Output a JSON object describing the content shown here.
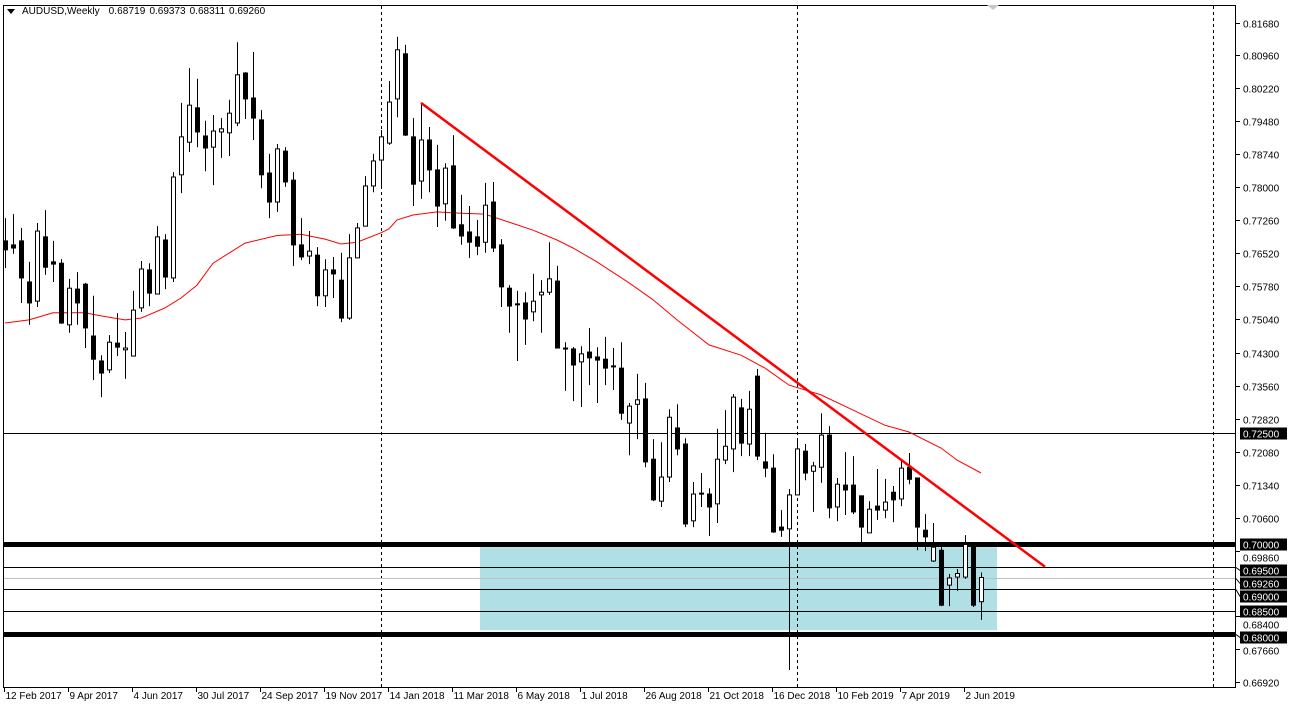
{
  "header": {
    "symbol_timeframe": "AUDUSD,Weekly",
    "ohlc": [
      "0.68719",
      "0.69373",
      "0.68311",
      "0.69260"
    ]
  },
  "colors": {
    "bull_body": "#ffffff",
    "bear_body": "#000000",
    "candle_outline": "#000000",
    "ma_line": "#ff0000",
    "trendline": "#ff0000",
    "zone_fill": "#b0dfe5",
    "price_box_bg": "#000000",
    "price_box_text": "#ffffff",
    "current_price_line": "#c0c0c0"
  },
  "chart_data": {
    "type": "candlestick",
    "symbol": "AUDUSD",
    "timeframe": "Weekly",
    "first_candle_week": "2017-02-12",
    "ylim": [
      0.6692,
      0.8168
    ],
    "grid": false,
    "y_tick_labels": [
      "0.81680",
      "0.80960",
      "0.80220",
      "0.79480",
      "0.78740",
      "0.78000",
      "0.77260",
      "0.76520",
      "0.75780",
      "0.75040",
      "0.74300",
      "0.73560",
      "0.72820",
      "0.72080",
      "0.71340",
      "0.70600",
      "0.69860",
      "0.68400",
      "0.67660",
      "0.66920"
    ],
    "x_tick_labels": [
      "12 Feb 2017",
      "9 Apr 2017",
      "4 Jun 2017",
      "30 Jul 2017",
      "24 Sep 2017",
      "19 Nov 2017",
      "14 Jan 2018",
      "11 Mar 2018",
      "6 May 2018",
      "1 Jul 2018",
      "26 Aug 2018",
      "21 Oct 2018",
      "16 Dec 2018",
      "10 Feb 2019",
      "7 Apr 2019",
      "2 Jun 2019"
    ],
    "ohlc_fields": [
      "open",
      "high",
      "low",
      "close"
    ],
    "candles": [
      [
        0.768,
        0.7731,
        0.7619,
        0.766
      ],
      [
        0.7671,
        0.774,
        0.7651,
        0.7664
      ],
      [
        0.768,
        0.7709,
        0.7541,
        0.7597
      ],
      [
        0.7588,
        0.7633,
        0.7492,
        0.7541
      ],
      [
        0.7545,
        0.772,
        0.7532,
        0.7702
      ],
      [
        0.7689,
        0.7749,
        0.7604,
        0.7621
      ],
      [
        0.7633,
        0.768,
        0.7588,
        0.7628
      ],
      [
        0.763,
        0.7639,
        0.7494,
        0.7496
      ],
      [
        0.7492,
        0.7595,
        0.7474,
        0.7574
      ],
      [
        0.7572,
        0.761,
        0.7492,
        0.7541
      ],
      [
        0.7583,
        0.7586,
        0.744,
        0.7485
      ],
      [
        0.7467,
        0.7557,
        0.7368,
        0.7415
      ],
      [
        0.7411,
        0.7424,
        0.733,
        0.7384
      ],
      [
        0.7391,
        0.7469,
        0.7384,
        0.7453
      ],
      [
        0.7451,
        0.7518,
        0.7422,
        0.7442
      ],
      [
        0.7436,
        0.7476,
        0.7371,
        0.744
      ],
      [
        0.7422,
        0.7568,
        0.7422,
        0.7525
      ],
      [
        0.753,
        0.7635,
        0.7521,
        0.7617
      ],
      [
        0.7615,
        0.763,
        0.7534,
        0.7563
      ],
      [
        0.7561,
        0.7713,
        0.7561,
        0.7689
      ],
      [
        0.7682,
        0.7695,
        0.7572,
        0.7599
      ],
      [
        0.7597,
        0.7834,
        0.7588,
        0.7823
      ],
      [
        0.7828,
        0.7989,
        0.7787,
        0.7913
      ],
      [
        0.7901,
        0.8067,
        0.7879,
        0.7984
      ],
      [
        0.7978,
        0.8043,
        0.789,
        0.7924
      ],
      [
        0.7915,
        0.7949,
        0.7836,
        0.7888
      ],
      [
        0.789,
        0.7962,
        0.7805,
        0.7926
      ],
      [
        0.7924,
        0.7955,
        0.7866,
        0.7931
      ],
      [
        0.7922,
        0.7996,
        0.787,
        0.7966
      ],
      [
        0.7944,
        0.8125,
        0.7937,
        0.8052
      ],
      [
        0.8056,
        0.8058,
        0.7953,
        0.7998
      ],
      [
        0.8,
        0.8103,
        0.7906,
        0.7955
      ],
      [
        0.7951,
        0.7973,
        0.7798,
        0.7828
      ],
      [
        0.7832,
        0.7875,
        0.7731,
        0.7767
      ],
      [
        0.7767,
        0.7897,
        0.7745,
        0.7886
      ],
      [
        0.7881,
        0.789,
        0.7801,
        0.7812
      ],
      [
        0.7816,
        0.7834,
        0.7624,
        0.7671
      ],
      [
        0.7671,
        0.7731,
        0.7637,
        0.7644
      ],
      [
        0.7646,
        0.7702,
        0.7628,
        0.7657
      ],
      [
        0.7648,
        0.7666,
        0.7534,
        0.7557
      ],
      [
        0.7557,
        0.7639,
        0.7532,
        0.7615
      ],
      [
        0.7615,
        0.7644,
        0.7552,
        0.7606
      ],
      [
        0.7592,
        0.7653,
        0.7498,
        0.7507
      ],
      [
        0.7507,
        0.7695,
        0.7503,
        0.7642
      ],
      [
        0.7642,
        0.772,
        0.7642,
        0.7709
      ],
      [
        0.7713,
        0.7825,
        0.7713,
        0.7803
      ],
      [
        0.7803,
        0.7875,
        0.7789,
        0.7859
      ],
      [
        0.7861,
        0.7928,
        0.7801,
        0.7913
      ],
      [
        0.7899,
        0.8038,
        0.7895,
        0.7991
      ],
      [
        0.7998,
        0.8137,
        0.7957,
        0.8108
      ],
      [
        0.8099,
        0.8119,
        0.7915,
        0.7917
      ],
      [
        0.7913,
        0.7955,
        0.7758,
        0.7807
      ],
      [
        0.7814,
        0.7989,
        0.7774,
        0.7906
      ],
      [
        0.7906,
        0.7935,
        0.7789,
        0.7839
      ],
      [
        0.7839,
        0.7895,
        0.7711,
        0.7758
      ],
      [
        0.7763,
        0.7854,
        0.7725,
        0.7843
      ],
      [
        0.7848,
        0.7917,
        0.7707,
        0.7709
      ],
      [
        0.7716,
        0.7783,
        0.7671,
        0.7691
      ],
      [
        0.77,
        0.7758,
        0.7642,
        0.7677
      ],
      [
        0.7689,
        0.7727,
        0.7648,
        0.7668
      ],
      [
        0.7677,
        0.781,
        0.7653,
        0.776
      ],
      [
        0.7767,
        0.7812,
        0.7655,
        0.7664
      ],
      [
        0.7671,
        0.7684,
        0.7532,
        0.7577
      ],
      [
        0.7574,
        0.7581,
        0.7474,
        0.7534
      ],
      [
        0.7539,
        0.7568,
        0.7411,
        0.7538
      ],
      [
        0.7541,
        0.7565,
        0.7447,
        0.7505
      ],
      [
        0.7521,
        0.7606,
        0.75,
        0.7545
      ],
      [
        0.7559,
        0.7592,
        0.7474,
        0.7565
      ],
      [
        0.7565,
        0.7677,
        0.7559,
        0.7595
      ],
      [
        0.759,
        0.7624,
        0.744,
        0.744
      ],
      [
        0.744,
        0.7453,
        0.7344,
        0.7438
      ],
      [
        0.7438,
        0.7442,
        0.7321,
        0.7402
      ],
      [
        0.7409,
        0.7444,
        0.7308,
        0.7427
      ],
      [
        0.7431,
        0.7485,
        0.7357,
        0.7418
      ],
      [
        0.742,
        0.7442,
        0.7317,
        0.7413
      ],
      [
        0.7415,
        0.7465,
        0.7357,
        0.7395
      ],
      [
        0.74,
        0.744,
        0.7346,
        0.7398
      ],
      [
        0.7395,
        0.7453,
        0.7279,
        0.7294
      ],
      [
        0.7272,
        0.7317,
        0.72,
        0.731
      ],
      [
        0.7314,
        0.7382,
        0.7236,
        0.7324
      ],
      [
        0.7326,
        0.7362,
        0.7173,
        0.7185
      ],
      [
        0.7191,
        0.7236,
        0.7097,
        0.71
      ],
      [
        0.7097,
        0.7229,
        0.7084,
        0.7151
      ],
      [
        0.7151,
        0.7303,
        0.714,
        0.7285
      ],
      [
        0.7261,
        0.7314,
        0.72,
        0.7214
      ],
      [
        0.7225,
        0.7238,
        0.7039,
        0.7046
      ],
      [
        0.7053,
        0.714,
        0.7039,
        0.7113
      ],
      [
        0.7113,
        0.716,
        0.7084,
        0.7115
      ],
      [
        0.7113,
        0.7126,
        0.7019,
        0.7084
      ],
      [
        0.7091,
        0.7259,
        0.7048,
        0.7191
      ],
      [
        0.7189,
        0.7301,
        0.718,
        0.722
      ],
      [
        0.7214,
        0.7337,
        0.7162,
        0.733
      ],
      [
        0.7306,
        0.7326,
        0.7198,
        0.7227
      ],
      [
        0.7225,
        0.7344,
        0.7198,
        0.7303
      ],
      [
        0.7377,
        0.7393,
        0.7189,
        0.7198
      ],
      [
        0.7185,
        0.725,
        0.7151,
        0.7171
      ],
      [
        0.7171,
        0.7202,
        0.7026,
        0.7028
      ],
      [
        0.7039,
        0.7077,
        0.7017,
        0.7032
      ],
      [
        0.7035,
        0.7124,
        0.6719,
        0.7111
      ],
      [
        0.7111,
        0.7234,
        0.7111,
        0.7214
      ],
      [
        0.7209,
        0.7225,
        0.7144,
        0.716
      ],
      [
        0.7164,
        0.7185,
        0.7073,
        0.7176
      ],
      [
        0.7173,
        0.7294,
        0.7138,
        0.7245
      ],
      [
        0.7245,
        0.7265,
        0.7059,
        0.7082
      ],
      [
        0.7084,
        0.7149,
        0.7052,
        0.7135
      ],
      [
        0.7133,
        0.7207,
        0.7066,
        0.7122
      ],
      [
        0.7133,
        0.7198,
        0.7068,
        0.7073
      ],
      [
        0.7109,
        0.7109,
        0.7003,
        0.7039
      ],
      [
        0.7026,
        0.7097,
        0.7026,
        0.7079
      ],
      [
        0.7086,
        0.7169,
        0.7055,
        0.7077
      ],
      [
        0.7077,
        0.7147,
        0.7059,
        0.7095
      ],
      [
        0.7117,
        0.7131,
        0.705,
        0.71
      ],
      [
        0.7102,
        0.7191,
        0.7086,
        0.7171
      ],
      [
        0.7173,
        0.7205,
        0.7135,
        0.7146
      ],
      [
        0.7149,
        0.7149,
        0.6987,
        0.7039
      ],
      [
        0.7032,
        0.7068,
        0.6985,
        0.7017
      ],
      [
        0.6963,
        0.7048,
        0.6961,
        0.6994
      ],
      [
        0.6987,
        0.6994,
        0.6862,
        0.6864
      ],
      [
        0.6909,
        0.6934,
        0.6862,
        0.6925
      ],
      [
        0.6927,
        0.6945,
        0.6896,
        0.6935
      ],
      [
        0.6927,
        0.7021,
        0.6923,
        0.7
      ],
      [
        0.7,
        0.7,
        0.686,
        0.6864
      ],
      [
        0.68719,
        0.69373,
        0.68311,
        0.6926
      ]
    ],
    "moving_average": {
      "point_fields": [
        "candle_index",
        "price"
      ],
      "points": [
        [
          0,
          0.7496
        ],
        [
          3,
          0.7503
        ],
        [
          6,
          0.7519
        ],
        [
          10,
          0.7519
        ],
        [
          12,
          0.7512
        ],
        [
          15,
          0.7503
        ],
        [
          17,
          0.7507
        ],
        [
          20,
          0.753
        ],
        [
          22,
          0.7552
        ],
        [
          24,
          0.7581
        ],
        [
          26,
          0.763
        ],
        [
          30,
          0.7675
        ],
        [
          34,
          0.7692
        ],
        [
          37,
          0.7695
        ],
        [
          40,
          0.7684
        ],
        [
          42,
          0.7673
        ],
        [
          44,
          0.7677
        ],
        [
          47,
          0.7698
        ],
        [
          48,
          0.7707
        ],
        [
          49,
          0.7727
        ],
        [
          51,
          0.7738
        ],
        [
          54,
          0.7745
        ],
        [
          57,
          0.7742
        ],
        [
          60,
          0.774
        ],
        [
          63,
          0.7722
        ],
        [
          66,
          0.7704
        ],
        [
          69,
          0.7682
        ],
        [
          71,
          0.7664
        ],
        [
          74,
          0.7633
        ],
        [
          78,
          0.7586
        ],
        [
          81,
          0.7548
        ],
        [
          84,
          0.7503
        ],
        [
          88,
          0.7447
        ],
        [
          92,
          0.7424
        ],
        [
          95,
          0.7395
        ],
        [
          98,
          0.7357
        ],
        [
          102,
          0.7335
        ],
        [
          106,
          0.7301
        ],
        [
          110,
          0.7267
        ],
        [
          113,
          0.7252
        ],
        [
          117,
          0.7216
        ],
        [
          119,
          0.7189
        ],
        [
          122,
          0.716
        ]
      ]
    },
    "trendline": {
      "from": {
        "week": "2018-02-11",
        "price": 0.7989
      },
      "to": {
        "week": "2019-08-11",
        "price": 0.695
      }
    },
    "zone": {
      "from_week": "2018-04-08",
      "to_week": "2019-06-30",
      "top": 0.6994,
      "bottom": 0.6808
    },
    "period_separators": [
      "2018-01-07",
      "2019-01-06",
      "2020-01-05"
    ],
    "horizontal_levels": [
      {
        "price": 0.725,
        "label": "0.72500",
        "weight": "thin"
      },
      {
        "price": 0.7,
        "label": "0.70000",
        "weight": "thick"
      },
      {
        "price": 0.695,
        "label": "0.69500",
        "weight": "thin"
      },
      {
        "price": 0.6926,
        "label": "0.69260",
        "weight": "current"
      },
      {
        "price": 0.69,
        "label": "0.69000",
        "weight": "thin"
      },
      {
        "price": 0.685,
        "label": "0.68500",
        "weight": "thin"
      },
      {
        "price": 0.68,
        "label": "0.68000",
        "weight": "thick"
      }
    ]
  }
}
